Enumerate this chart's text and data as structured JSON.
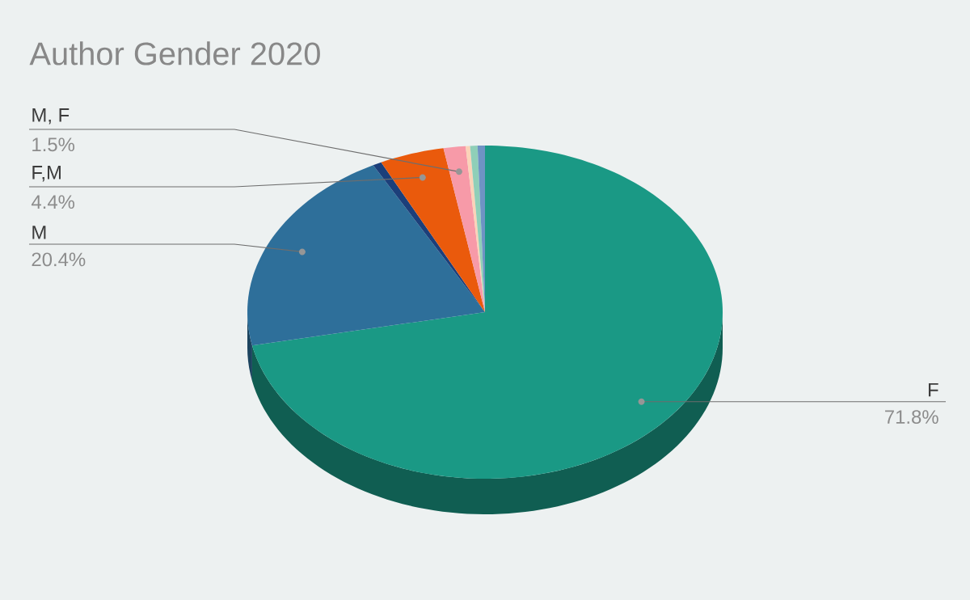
{
  "chart_data": {
    "type": "pie",
    "title": "Author Gender 2020",
    "categories": [
      "F",
      "M",
      null,
      "F,M",
      "M, F",
      null,
      null,
      null
    ],
    "values": [
      71.8,
      20.4,
      0.6,
      4.4,
      1.5,
      0.3,
      0.5,
      0.5
    ],
    "value_labels": [
      "71.8%",
      "20.4%",
      null,
      "4.4%",
      "1.5%",
      null,
      null,
      null
    ],
    "colors": [
      "#1a9985",
      "#2e6f9a",
      "#1c3f7a",
      "#ea5a0c",
      "#f79aa8",
      "#fbd3b8",
      "#8fcfb8",
      "#6e93c4"
    ]
  }
}
